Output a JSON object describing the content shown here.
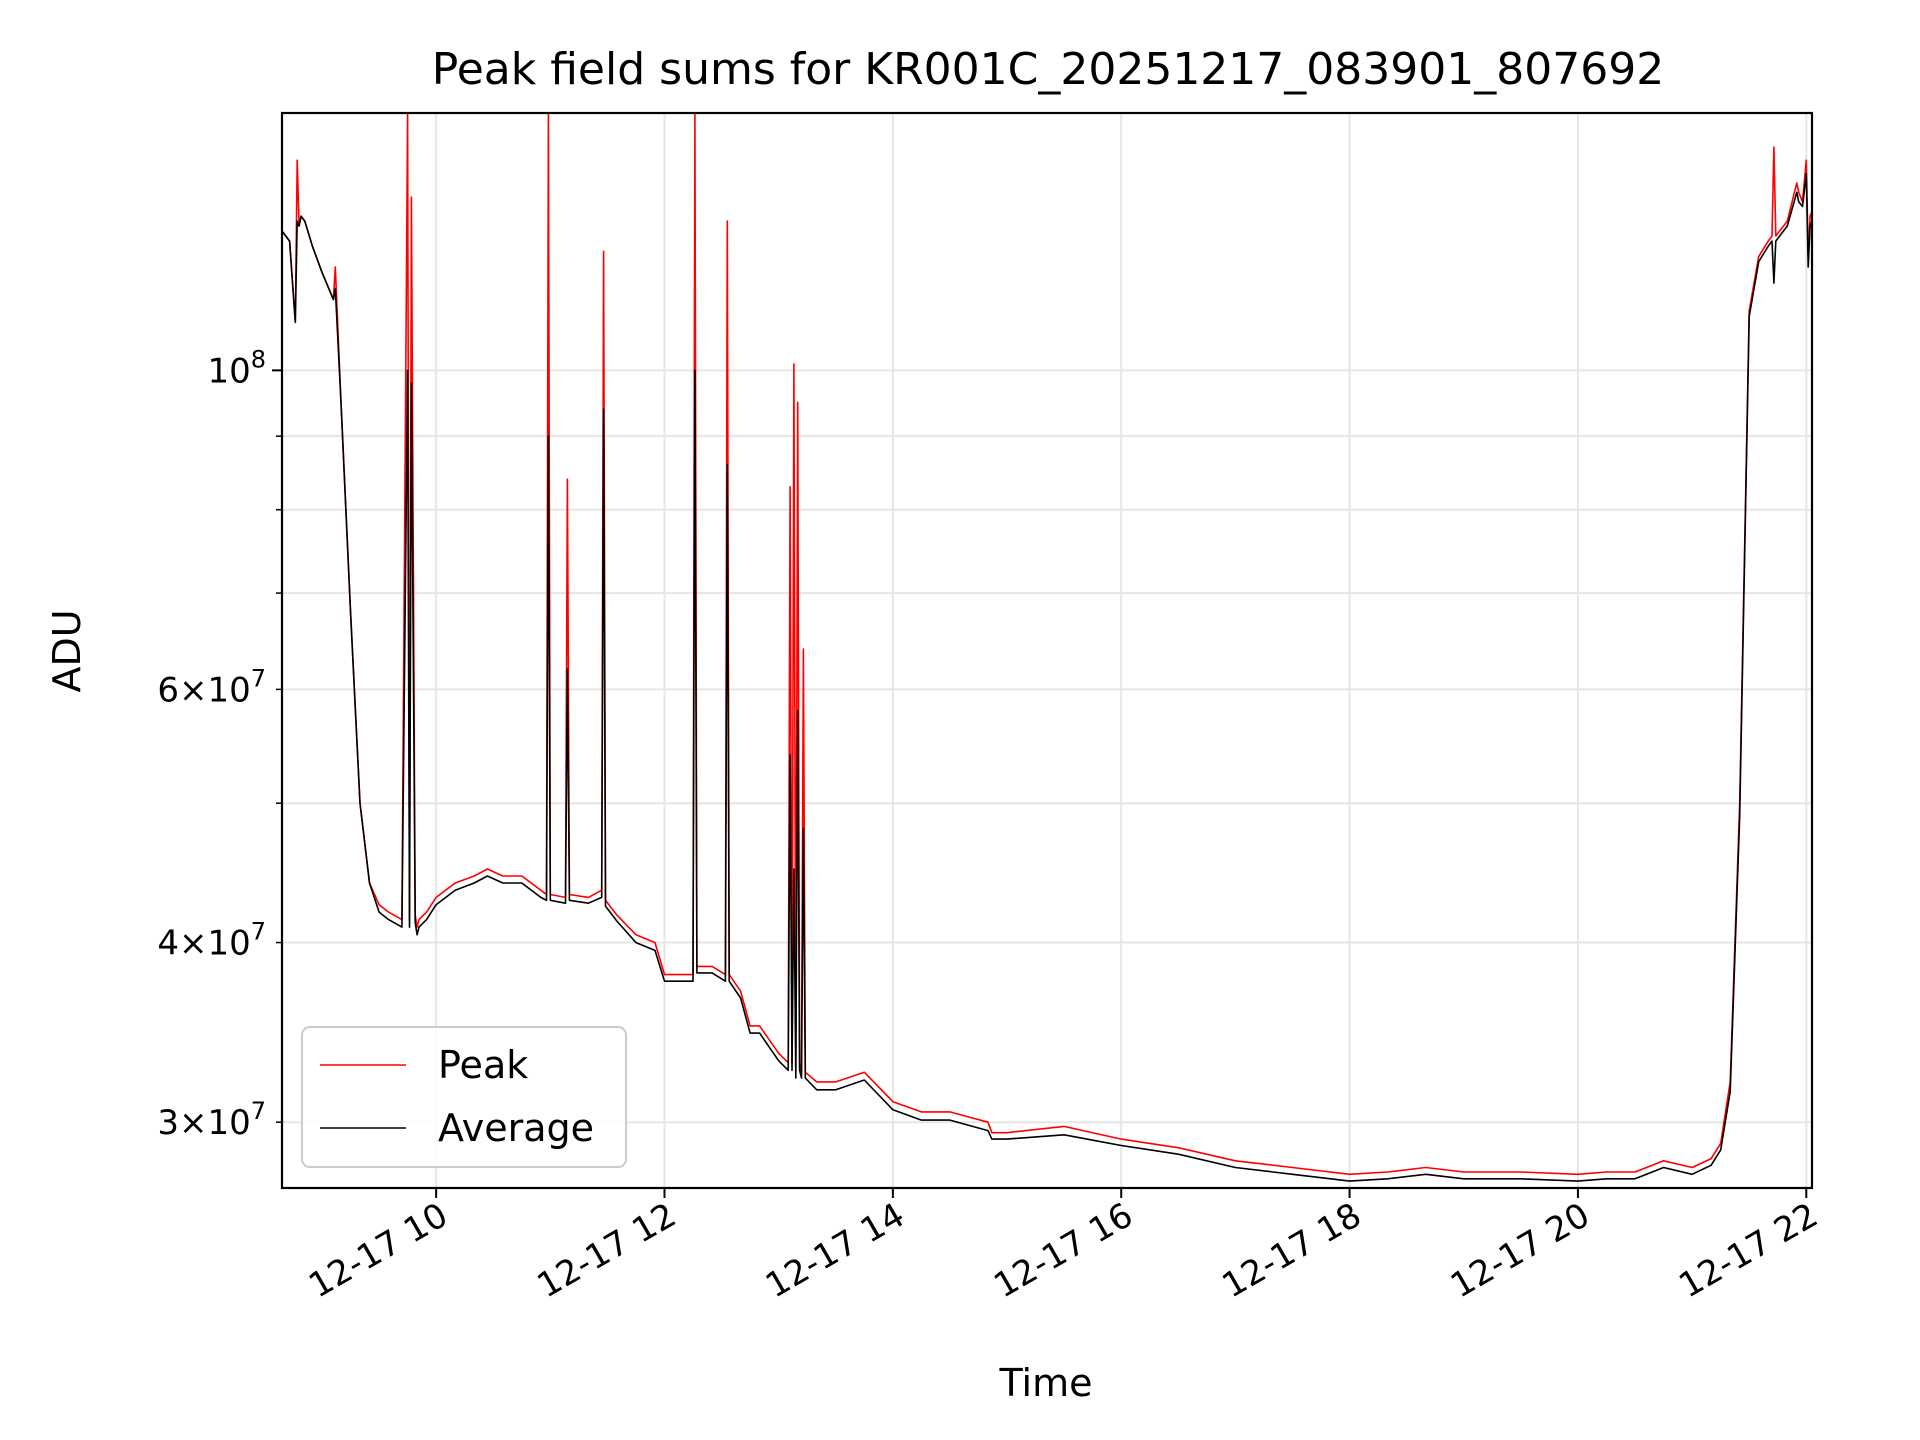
{
  "chart_data": {
    "type": "line",
    "title": "Peak field sums for KR001C_20251217_083901_807692",
    "xlabel": "Time",
    "ylabel": "ADU",
    "yscale": "log",
    "xlim": [
      "2025-12-17T08:39",
      "2025-12-17T22:03"
    ],
    "ylim": [
      27000000,
      151000000
    ],
    "grid": true,
    "legend_position": "lower-left",
    "x_ticks": [
      {
        "label": "12-17 10",
        "time": "2025-12-17T10:00"
      },
      {
        "label": "12-17 12",
        "time": "2025-12-17T12:00"
      },
      {
        "label": "12-17 14",
        "time": "2025-12-17T14:00"
      },
      {
        "label": "12-17 16",
        "time": "2025-12-17T16:00"
      },
      {
        "label": "12-17 18",
        "time": "2025-12-17T18:00"
      },
      {
        "label": "12-17 20",
        "time": "2025-12-17T20:00"
      },
      {
        "label": "12-17 22",
        "time": "2025-12-17T22:00"
      }
    ],
    "y_ticks_major": [
      {
        "base": "10",
        "exp": "8",
        "value": 100000000
      }
    ],
    "y_ticks_minor_labeled": [
      {
        "mant": "3",
        "base": "10",
        "exp": "7",
        "value": 30000000
      },
      {
        "mant": "4",
        "base": "10",
        "exp": "7",
        "value": 40000000
      },
      {
        "mant": "6",
        "base": "10",
        "exp": "7",
        "value": 60000000
      }
    ],
    "y_ticks_minor": [
      50000000,
      70000000,
      80000000,
      90000000
    ],
    "series": [
      {
        "name": "Peak",
        "color": "#ff0000",
        "x": [
          "2025-12-17T08:39",
          "2025-12-17T08:43",
          "2025-12-17T08:46",
          "2025-12-17T08:47",
          "2025-12-17T08:48",
          "2025-12-17T08:49",
          "2025-12-17T08:51",
          "2025-12-17T08:55",
          "2025-12-17T09:00",
          "2025-12-17T09:06",
          "2025-12-17T09:07",
          "2025-12-17T09:10",
          "2025-12-17T09:15",
          "2025-12-17T09:20",
          "2025-12-17T09:25",
          "2025-12-17T09:30",
          "2025-12-17T09:35",
          "2025-12-17T09:42",
          "2025-12-17T09:45",
          "2025-12-17T09:46",
          "2025-12-17T09:47",
          "2025-12-17T09:49",
          "2025-12-17T09:50",
          "2025-12-17T09:51",
          "2025-12-17T09:55",
          "2025-12-17T10:00",
          "2025-12-17T10:10",
          "2025-12-17T10:20",
          "2025-12-17T10:27",
          "2025-12-17T10:35",
          "2025-12-17T10:45",
          "2025-12-17T10:55",
          "2025-12-17T10:58",
          "2025-12-17T10:59",
          "2025-12-17T11:00",
          "2025-12-17T11:08",
          "2025-12-17T11:09",
          "2025-12-17T11:10",
          "2025-12-17T11:20",
          "2025-12-17T11:27",
          "2025-12-17T11:28",
          "2025-12-17T11:29",
          "2025-12-17T11:35",
          "2025-12-17T11:45",
          "2025-12-17T11:55",
          "2025-12-17T12:00",
          "2025-12-17T12:10",
          "2025-12-17T12:15",
          "2025-12-17T12:16",
          "2025-12-17T12:17",
          "2025-12-17T12:25",
          "2025-12-17T12:32",
          "2025-12-17T12:33",
          "2025-12-17T12:34",
          "2025-12-17T12:40",
          "2025-12-17T12:45",
          "2025-12-17T12:50",
          "2025-12-17T13:00",
          "2025-12-17T13:05",
          "2025-12-17T13:06",
          "2025-12-17T13:07",
          "2025-12-17T13:08",
          "2025-12-17T13:09",
          "2025-12-17T13:10",
          "2025-12-17T13:11",
          "2025-12-17T13:12",
          "2025-12-17T13:13",
          "2025-12-17T13:14",
          "2025-12-17T13:20",
          "2025-12-17T13:30",
          "2025-12-17T13:45",
          "2025-12-17T14:00",
          "2025-12-17T14:15",
          "2025-12-17T14:30",
          "2025-12-17T14:50",
          "2025-12-17T14:52",
          "2025-12-17T15:00",
          "2025-12-17T15:30",
          "2025-12-17T16:00",
          "2025-12-17T16:30",
          "2025-12-17T17:00",
          "2025-12-17T17:30",
          "2025-12-17T18:00",
          "2025-12-17T18:20",
          "2025-12-17T18:40",
          "2025-12-17T19:00",
          "2025-12-17T19:30",
          "2025-12-17T20:00",
          "2025-12-17T20:15",
          "2025-12-17T20:30",
          "2025-12-17T20:45",
          "2025-12-17T21:00",
          "2025-12-17T21:05",
          "2025-12-17T21:10",
          "2025-12-17T21:15",
          "2025-12-17T21:20",
          "2025-12-17T21:25",
          "2025-12-17T21:30",
          "2025-12-17T21:35",
          "2025-12-17T21:40",
          "2025-12-17T21:42",
          "2025-12-17T21:43",
          "2025-12-17T21:44",
          "2025-12-17T21:50",
          "2025-12-17T21:55",
          "2025-12-17T21:56",
          "2025-12-17T21:58",
          "2025-12-17T22:00",
          "2025-12-17T22:01",
          "2025-12-17T22:02",
          "2025-12-17T22:03"
        ],
        "y": [
          125000000,
          123000000,
          108000000,
          140000000,
          126000000,
          128000000,
          127000000,
          122000000,
          117000000,
          112000000,
          118000000,
          95000000,
          68000000,
          50000000,
          44000000,
          42500000,
          42000000,
          41500000,
          151000000,
          41500000,
          132000000,
          41800000,
          41000000,
          41500000,
          42000000,
          43000000,
          44000000,
          44500000,
          45000000,
          44500000,
          44500000,
          43500000,
          43200000,
          151000000,
          43200000,
          43000000,
          84000000,
          43200000,
          43000000,
          43500000,
          121000000,
          42800000,
          41800000,
          40500000,
          40000000,
          38000000,
          38000000,
          38000000,
          151000000,
          38500000,
          38500000,
          38000000,
          127000000,
          38000000,
          37000000,
          35000000,
          35000000,
          33500000,
          33000000,
          83000000,
          33000000,
          101000000,
          32500000,
          95000000,
          33000000,
          32500000,
          64000000,
          32500000,
          32000000,
          32000000,
          32500000,
          31000000,
          30500000,
          30500000,
          30000000,
          29500000,
          29500000,
          29800000,
          29200000,
          28800000,
          28200000,
          27900000,
          27600000,
          27700000,
          27900000,
          27700000,
          27700000,
          27600000,
          27700000,
          27700000,
          28200000,
          27900000,
          28100000,
          28300000,
          29000000,
          32000000,
          50000000,
          110000000,
          120000000,
          123000000,
          124000000,
          143000000,
          124000000,
          127000000,
          135000000,
          133000000,
          131000000,
          140000000,
          120000000,
          128000000,
          129000000
        ]
      },
      {
        "name": "Average",
        "color": "#000000",
        "x": [
          "2025-12-17T08:39",
          "2025-12-17T08:43",
          "2025-12-17T08:46",
          "2025-12-17T08:47",
          "2025-12-17T08:48",
          "2025-12-17T08:49",
          "2025-12-17T08:51",
          "2025-12-17T08:55",
          "2025-12-17T09:00",
          "2025-12-17T09:06",
          "2025-12-17T09:07",
          "2025-12-17T09:10",
          "2025-12-17T09:15",
          "2025-12-17T09:20",
          "2025-12-17T09:25",
          "2025-12-17T09:30",
          "2025-12-17T09:35",
          "2025-12-17T09:42",
          "2025-12-17T09:45",
          "2025-12-17T09:46",
          "2025-12-17T09:47",
          "2025-12-17T09:49",
          "2025-12-17T09:50",
          "2025-12-17T09:51",
          "2025-12-17T09:55",
          "2025-12-17T10:00",
          "2025-12-17T10:10",
          "2025-12-17T10:20",
          "2025-12-17T10:27",
          "2025-12-17T10:35",
          "2025-12-17T10:45",
          "2025-12-17T10:55",
          "2025-12-17T10:58",
          "2025-12-17T10:59",
          "2025-12-17T11:00",
          "2025-12-17T11:08",
          "2025-12-17T11:09",
          "2025-12-17T11:10",
          "2025-12-17T11:20",
          "2025-12-17T11:27",
          "2025-12-17T11:28",
          "2025-12-17T11:29",
          "2025-12-17T11:35",
          "2025-12-17T11:45",
          "2025-12-17T11:55",
          "2025-12-17T12:00",
          "2025-12-17T12:10",
          "2025-12-17T12:15",
          "2025-12-17T12:16",
          "2025-12-17T12:17",
          "2025-12-17T12:25",
          "2025-12-17T12:32",
          "2025-12-17T12:33",
          "2025-12-17T12:34",
          "2025-12-17T12:40",
          "2025-12-17T12:45",
          "2025-12-17T12:50",
          "2025-12-17T13:00",
          "2025-12-17T13:05",
          "2025-12-17T13:06",
          "2025-12-17T13:07",
          "2025-12-17T13:08",
          "2025-12-17T13:09",
          "2025-12-17T13:10",
          "2025-12-17T13:11",
          "2025-12-17T13:12",
          "2025-12-17T13:13",
          "2025-12-17T13:14",
          "2025-12-17T13:20",
          "2025-12-17T13:30",
          "2025-12-17T13:45",
          "2025-12-17T14:00",
          "2025-12-17T14:15",
          "2025-12-17T14:30",
          "2025-12-17T14:50",
          "2025-12-17T14:52",
          "2025-12-17T15:00",
          "2025-12-17T15:30",
          "2025-12-17T16:00",
          "2025-12-17T16:30",
          "2025-12-17T17:00",
          "2025-12-17T17:30",
          "2025-12-17T18:00",
          "2025-12-17T18:20",
          "2025-12-17T18:40",
          "2025-12-17T19:00",
          "2025-12-17T19:30",
          "2025-12-17T20:00",
          "2025-12-17T20:15",
          "2025-12-17T20:30",
          "2025-12-17T20:45",
          "2025-12-17T21:00",
          "2025-12-17T21:05",
          "2025-12-17T21:10",
          "2025-12-17T21:15",
          "2025-12-17T21:20",
          "2025-12-17T21:25",
          "2025-12-17T21:30",
          "2025-12-17T21:35",
          "2025-12-17T21:40",
          "2025-12-17T21:42",
          "2025-12-17T21:43",
          "2025-12-17T21:44",
          "2025-12-17T21:50",
          "2025-12-17T21:55",
          "2025-12-17T21:56",
          "2025-12-17T21:58",
          "2025-12-17T22:00",
          "2025-12-17T22:01",
          "2025-12-17T22:02",
          "2025-12-17T22:03"
        ],
        "y": [
          125000000,
          123000000,
          108000000,
          127000000,
          126000000,
          128000000,
          127000000,
          122000000,
          117000000,
          112000000,
          114000000,
          95000000,
          68000000,
          50000000,
          44000000,
          42000000,
          41500000,
          41000000,
          100000000,
          41000000,
          98000000,
          41300000,
          40500000,
          41000000,
          41500000,
          42500000,
          43500000,
          44000000,
          44500000,
          44000000,
          44000000,
          43000000,
          42800000,
          90000000,
          42800000,
          42600000,
          62000000,
          42800000,
          42600000,
          43000000,
          94000000,
          42400000,
          41400000,
          40000000,
          39500000,
          37600000,
          37600000,
          37600000,
          100000000,
          38100000,
          38100000,
          37600000,
          86000000,
          37600000,
          36600000,
          34600000,
          34600000,
          33100000,
          32600000,
          54000000,
          32600000,
          45000000,
          32200000,
          58000000,
          32600000,
          32200000,
          48000000,
          32200000,
          31600000,
          31600000,
          32100000,
          30600000,
          30100000,
          30100000,
          29600000,
          29200000,
          29200000,
          29400000,
          28900000,
          28500000,
          27900000,
          27600000,
          27300000,
          27400000,
          27600000,
          27400000,
          27400000,
          27300000,
          27400000,
          27400000,
          27900000,
          27600000,
          27800000,
          28000000,
          28700000,
          31500000,
          49000000,
          109000000,
          119000000,
          122000000,
          123000000,
          115000000,
          123000000,
          126000000,
          133000000,
          131000000,
          130000000,
          137000000,
          118000000,
          126000000,
          127000000
        ]
      }
    ]
  }
}
